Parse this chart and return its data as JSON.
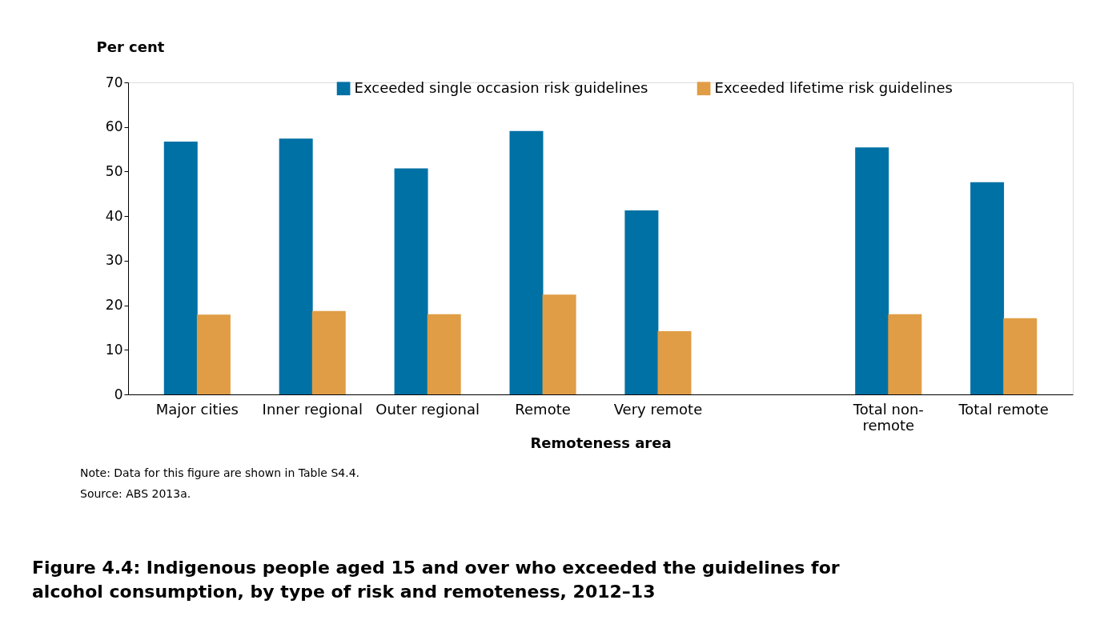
{
  "chart_data": {
    "type": "bar",
    "title": "Figure 4.4: Indigenous people aged 15 and over who exceeded the guidelines for alcohol consumption, by type of risk and remoteness, 2012–13",
    "xlabel": "Remoteness area",
    "ylabel": "Per cent",
    "categories": [
      "Major cities",
      "Inner regional",
      "Outer regional",
      "Remote",
      "Very remote",
      null,
      "Total non-remote",
      "Total remote"
    ],
    "series": [
      {
        "name": "Exceeded single occasion risk guidelines",
        "color": "#0071a4",
        "values": [
          56.7,
          57.4,
          50.7,
          59.1,
          41.3,
          null,
          55.4,
          47.6
        ]
      },
      {
        "name": "Exceeded lifetime risk guidelines",
        "color": "#e09d45",
        "values": [
          17.9,
          18.7,
          18.0,
          22.4,
          14.2,
          null,
          18.0,
          17.1
        ]
      }
    ],
    "ylim": [
      0,
      70
    ],
    "yticks": [
      0,
      10,
      20,
      30,
      40,
      50,
      60,
      70
    ],
    "grid": false,
    "legend": "top",
    "annotations": [
      "Note: Data for this figure are shown in Table S4.4.",
      "Source: ABS 2013a."
    ]
  }
}
